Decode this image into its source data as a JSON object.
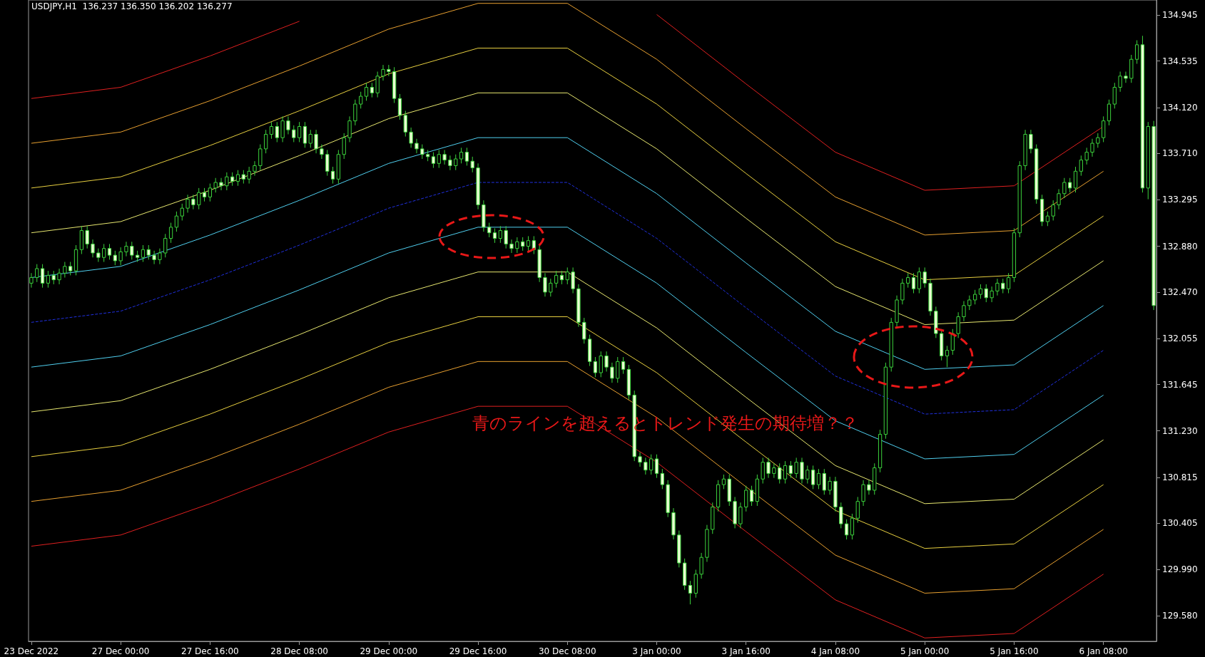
{
  "chart_data": {
    "type": "candlestick",
    "title": "USDJPY,H1  136.237 136.350 136.202 136.277",
    "annotations": [
      "青のラインを超えるとトレンド発生の期待増？？"
    ],
    "color": "#3cd23c",
    "categories": [
      "23 Dec 2022",
      null,
      null,
      null,
      null,
      null,
      null,
      null,
      null,
      null,
      null,
      null,
      null,
      null,
      null,
      null,
      "27 Dec 00:00",
      null,
      null,
      null,
      null,
      null,
      null,
      null,
      null,
      null,
      null,
      null,
      null,
      null,
      null,
      null,
      "27 Dec 16:00",
      null,
      null,
      null,
      null,
      null,
      null,
      null,
      null,
      null,
      null,
      null,
      null,
      null,
      null,
      null,
      "28 Dec 08:00",
      null,
      null,
      null,
      null,
      null,
      null,
      null,
      null,
      null,
      null,
      null,
      null,
      null,
      null,
      null,
      "29 Dec 00:00",
      null,
      null,
      null,
      null,
      null,
      null,
      null,
      null,
      null,
      null,
      null,
      null,
      null,
      null,
      null,
      "29 Dec 16:00",
      null,
      null,
      null,
      null,
      null,
      null,
      null,
      null,
      null,
      null,
      null,
      null,
      null,
      null,
      null,
      "30 Dec 08:00",
      null,
      null,
      null,
      null,
      null,
      null,
      null,
      null,
      null,
      null,
      null,
      null,
      null,
      null,
      null,
      "3 Jan 00:00",
      null,
      null,
      null,
      null,
      null,
      null,
      null,
      null,
      null,
      null,
      null,
      null,
      null,
      null,
      null,
      "3 Jan 16:00",
      null,
      null,
      null,
      null,
      null,
      null,
      null,
      null,
      null,
      null,
      null,
      null,
      null,
      null,
      null,
      "4 Jan 08:00",
      null,
      null,
      null,
      null,
      null,
      null,
      null,
      null,
      null,
      null,
      null,
      null,
      null,
      null,
      null,
      "5 Jan 00:00",
      null,
      null,
      null,
      null,
      null,
      null,
      null,
      null,
      null,
      null,
      null,
      null,
      null,
      null,
      null,
      "5 Jan 16:00",
      null,
      null,
      null,
      null,
      null,
      null,
      null,
      null,
      null,
      null,
      null,
      null,
      null,
      null,
      null,
      "6 Jan 08:00",
      null,
      null,
      null,
      null,
      null,
      null,
      null,
      null,
      null
    ],
    "ylim": [
      129.35,
      135.08
    ],
    "yticks": [
      134.945,
      134.535,
      {
        "value": 134.12,
        "label": "134.120"
      },
      {
        "value": 133.71,
        "label": "133.710"
      },
      133.295,
      {
        "value": 132.88,
        "label": "132.880"
      },
      {
        "value": 132.47,
        "label": "132.470"
      },
      132.055,
      131.645,
      {
        "value": 131.23,
        "label": "131.230"
      },
      130.815,
      130.405,
      {
        "value": 129.99,
        "label": "129.990"
      },
      {
        "value": 129.58,
        "label": "129.580"
      }
    ],
    "ohlc": [
      [
        132.55,
        132.64,
        132.51,
        132.6
      ],
      [
        132.6,
        132.72,
        132.56,
        132.68
      ],
      [
        132.68,
        132.72,
        132.51,
        132.55
      ],
      [
        132.55,
        132.66,
        132.51,
        132.62
      ],
      [
        132.62,
        132.66,
        132.54,
        132.58
      ],
      [
        132.58,
        132.68,
        132.54,
        132.64
      ],
      [
        132.64,
        132.74,
        132.6,
        132.7
      ],
      [
        132.7,
        132.74,
        132.62,
        132.66
      ],
      [
        132.66,
        132.89,
        132.62,
        132.85
      ],
      [
        132.85,
        133.06,
        132.81,
        133.02
      ],
      [
        133.02,
        133.06,
        132.86,
        132.9
      ],
      [
        132.9,
        132.94,
        132.78,
        132.82
      ],
      [
        132.82,
        132.86,
        132.74,
        132.78
      ],
      [
        132.78,
        132.9,
        132.74,
        132.86
      ],
      [
        132.86,
        132.9,
        132.76,
        132.8
      ],
      [
        132.8,
        132.84,
        132.71,
        132.75
      ],
      [
        132.75,
        132.87,
        132.71,
        132.83
      ],
      [
        132.83,
        132.92,
        132.79,
        132.88
      ],
      [
        132.88,
        132.92,
        132.76,
        132.8
      ],
      [
        132.8,
        132.84,
        132.74,
        132.78
      ],
      [
        132.78,
        132.89,
        132.74,
        132.85
      ],
      [
        132.85,
        132.89,
        132.76,
        132.8
      ],
      [
        132.8,
        132.84,
        132.72,
        132.76
      ],
      [
        132.76,
        132.86,
        132.72,
        132.82
      ],
      [
        132.82,
        132.99,
        132.78,
        132.95
      ],
      [
        132.95,
        133.09,
        132.91,
        133.05
      ],
      [
        133.05,
        133.19,
        133.01,
        133.15
      ],
      [
        133.15,
        133.26,
        133.11,
        133.22
      ],
      [
        133.22,
        133.34,
        133.18,
        133.3
      ],
      [
        133.3,
        133.34,
        133.21,
        133.25
      ],
      [
        133.25,
        133.4,
        133.21,
        133.36
      ],
      [
        133.36,
        133.4,
        133.28,
        133.32
      ],
      [
        133.32,
        133.44,
        133.28,
        133.4
      ],
      [
        133.4,
        133.49,
        133.36,
        133.45
      ],
      [
        133.45,
        133.49,
        133.38,
        133.42
      ],
      [
        133.42,
        133.54,
        133.38,
        133.5
      ],
      [
        133.5,
        133.54,
        133.42,
        133.46
      ],
      [
        133.46,
        133.56,
        133.42,
        133.52
      ],
      [
        133.52,
        133.56,
        133.44,
        133.48
      ],
      [
        133.48,
        133.59,
        133.44,
        133.55
      ],
      [
        133.55,
        133.64,
        133.51,
        133.6
      ],
      [
        133.6,
        133.79,
        133.56,
        133.75
      ],
      [
        133.75,
        133.92,
        133.71,
        133.88
      ],
      [
        133.88,
        133.99,
        133.84,
        133.95
      ],
      [
        133.95,
        133.99,
        133.81,
        133.85
      ],
      [
        133.85,
        134.04,
        133.81,
        134.0
      ],
      [
        134.0,
        134.04,
        133.88,
        133.92
      ],
      [
        133.92,
        133.96,
        133.81,
        133.85
      ],
      [
        133.85,
        133.99,
        133.81,
        133.95
      ],
      [
        133.95,
        133.99,
        133.76,
        133.8
      ],
      [
        133.8,
        133.92,
        133.76,
        133.88
      ],
      [
        133.88,
        133.92,
        133.71,
        133.75
      ],
      [
        133.75,
        133.79,
        133.66,
        133.7
      ],
      [
        133.7,
        133.74,
        133.51,
        133.55
      ],
      [
        133.55,
        133.59,
        133.44,
        133.48
      ],
      [
        133.48,
        133.74,
        133.44,
        133.7
      ],
      [
        133.7,
        133.89,
        133.66,
        133.85
      ],
      [
        133.85,
        134.04,
        133.81,
        134.0
      ],
      [
        134.0,
        134.19,
        133.96,
        134.15
      ],
      [
        134.15,
        134.26,
        134.11,
        134.22
      ],
      [
        134.22,
        134.34,
        134.18,
        134.3
      ],
      [
        134.3,
        134.34,
        134.21,
        134.25
      ],
      [
        134.25,
        134.44,
        134.21,
        134.4
      ],
      [
        134.4,
        134.5,
        134.36,
        134.46
      ],
      [
        134.46,
        134.5,
        134.4,
        134.44
      ],
      [
        134.44,
        134.48,
        134.16,
        134.2
      ],
      [
        134.2,
        134.24,
        134.01,
        134.05
      ],
      [
        134.05,
        134.09,
        133.86,
        133.9
      ],
      [
        133.9,
        133.94,
        133.76,
        133.8
      ],
      [
        133.8,
        133.84,
        133.71,
        133.75
      ],
      [
        133.75,
        133.79,
        133.66,
        133.7
      ],
      [
        133.7,
        133.74,
        133.64,
        133.68
      ],
      [
        133.68,
        133.72,
        133.58,
        133.62
      ],
      [
        133.62,
        133.74,
        133.58,
        133.7
      ],
      [
        133.7,
        133.74,
        133.61,
        133.65
      ],
      [
        133.65,
        133.69,
        133.56,
        133.6
      ],
      [
        133.6,
        133.7,
        133.56,
        133.66
      ],
      [
        133.66,
        133.76,
        133.62,
        133.72
      ],
      [
        133.72,
        133.76,
        133.6,
        133.64
      ],
      [
        133.64,
        133.68,
        133.54,
        133.58
      ],
      [
        133.58,
        133.62,
        133.21,
        133.25
      ],
      [
        133.25,
        133.29,
        133.01,
        133.05
      ],
      [
        133.05,
        133.09,
        132.96,
        133.0
      ],
      [
        133.0,
        133.04,
        132.91,
        132.95
      ],
      [
        132.95,
        133.06,
        132.91,
        133.02
      ],
      [
        133.02,
        133.06,
        132.86,
        132.9
      ],
      [
        132.9,
        132.94,
        132.82,
        132.86
      ],
      [
        132.86,
        132.96,
        132.82,
        132.92
      ],
      [
        132.92,
        132.96,
        132.84,
        132.88
      ],
      [
        132.88,
        132.97,
        132.84,
        132.93
      ],
      [
        132.93,
        132.97,
        132.81,
        132.85
      ],
      [
        132.85,
        132.89,
        132.56,
        132.6
      ],
      [
        132.6,
        132.64,
        132.43,
        132.47
      ],
      [
        132.47,
        132.59,
        132.43,
        132.55
      ],
      [
        132.55,
        132.66,
        132.51,
        132.62
      ],
      [
        132.62,
        132.66,
        132.54,
        132.58
      ],
      [
        132.58,
        132.69,
        132.54,
        132.65
      ],
      [
        132.65,
        132.69,
        132.46,
        132.5
      ],
      [
        132.5,
        132.54,
        132.16,
        132.2
      ],
      [
        132.2,
        132.24,
        132.01,
        132.05
      ],
      [
        132.05,
        132.09,
        131.81,
        131.85
      ],
      [
        131.85,
        131.89,
        131.71,
        131.75
      ],
      [
        131.75,
        131.94,
        131.71,
        131.9
      ],
      [
        131.9,
        131.94,
        131.76,
        131.8
      ],
      [
        131.8,
        131.84,
        131.66,
        131.7
      ],
      [
        131.7,
        131.89,
        131.66,
        131.85
      ],
      [
        131.85,
        131.89,
        131.74,
        131.78
      ],
      [
        131.78,
        131.82,
        131.51,
        131.55
      ],
      [
        131.55,
        131.59,
        130.96,
        131.0
      ],
      [
        131.0,
        131.04,
        130.91,
        130.95
      ],
      [
        130.95,
        130.99,
        130.84,
        130.88
      ],
      [
        130.88,
        131.02,
        130.84,
        130.98
      ],
      [
        130.98,
        131.02,
        130.81,
        130.85
      ],
      [
        130.85,
        130.89,
        130.71,
        130.75
      ],
      [
        130.75,
        130.79,
        130.46,
        130.5
      ],
      [
        130.5,
        130.54,
        130.26,
        130.3
      ],
      [
        130.3,
        130.34,
        130.01,
        130.05
      ],
      [
        130.05,
        130.09,
        129.81,
        129.85
      ],
      [
        129.85,
        129.89,
        129.68,
        129.78
      ],
      [
        129.78,
        129.99,
        129.74,
        129.95
      ],
      [
        129.95,
        130.14,
        129.91,
        130.1
      ],
      [
        130.1,
        130.39,
        130.06,
        130.35
      ],
      [
        130.35,
        130.59,
        130.31,
        130.55
      ],
      [
        130.55,
        130.79,
        130.51,
        130.75
      ],
      [
        130.75,
        130.84,
        130.71,
        130.8
      ],
      [
        130.8,
        130.84,
        130.56,
        130.6
      ],
      [
        130.6,
        130.64,
        130.36,
        130.4
      ],
      [
        130.4,
        130.59,
        130.36,
        130.55
      ],
      [
        130.55,
        130.74,
        130.51,
        130.7
      ],
      [
        130.7,
        130.74,
        130.56,
        130.6
      ],
      [
        130.6,
        130.84,
        130.56,
        130.8
      ],
      [
        130.8,
        130.99,
        130.76,
        130.95
      ],
      [
        130.95,
        130.99,
        130.81,
        130.85
      ],
      [
        130.85,
        130.94,
        130.81,
        130.9
      ],
      [
        130.9,
        130.94,
        130.76,
        130.8
      ],
      [
        130.8,
        130.96,
        130.76,
        130.92
      ],
      [
        130.92,
        130.96,
        130.81,
        130.85
      ],
      [
        130.85,
        130.99,
        130.81,
        130.95
      ],
      [
        130.95,
        130.99,
        130.76,
        130.8
      ],
      [
        130.8,
        130.92,
        130.76,
        130.88
      ],
      [
        130.88,
        130.92,
        130.71,
        130.75
      ],
      [
        130.75,
        130.89,
        130.71,
        130.85
      ],
      [
        130.85,
        130.89,
        130.66,
        130.7
      ],
      [
        130.7,
        130.82,
        130.66,
        130.78
      ],
      [
        130.78,
        130.82,
        130.51,
        130.55
      ],
      [
        130.55,
        130.59,
        130.36,
        130.4
      ],
      [
        130.4,
        130.44,
        130.26,
        130.3
      ],
      [
        130.3,
        130.49,
        130.26,
        130.45
      ],
      [
        130.45,
        130.64,
        130.41,
        130.6
      ],
      [
        130.6,
        130.79,
        130.56,
        130.75
      ],
      [
        130.75,
        130.79,
        130.66,
        130.7
      ],
      [
        130.7,
        130.94,
        130.66,
        130.9
      ],
      [
        130.9,
        131.24,
        130.86,
        131.2
      ],
      [
        131.2,
        131.84,
        131.16,
        131.8
      ],
      [
        131.8,
        132.24,
        131.76,
        132.2
      ],
      [
        132.2,
        132.44,
        132.16,
        132.4
      ],
      [
        132.4,
        132.59,
        132.36,
        132.55
      ],
      [
        132.55,
        132.64,
        132.51,
        132.6
      ],
      [
        132.6,
        132.64,
        132.46,
        132.5
      ],
      [
        132.5,
        132.69,
        132.46,
        132.65
      ],
      [
        132.65,
        132.69,
        132.51,
        132.55
      ],
      [
        132.55,
        132.59,
        132.26,
        132.3
      ],
      [
        132.3,
        132.34,
        132.06,
        132.1
      ],
      [
        132.1,
        132.14,
        131.86,
        131.9
      ],
      [
        131.9,
        131.99,
        131.8,
        131.95
      ],
      [
        131.95,
        132.14,
        131.91,
        132.1
      ],
      [
        132.1,
        132.29,
        132.06,
        132.25
      ],
      [
        132.25,
        132.39,
        132.21,
        132.35
      ],
      [
        132.35,
        132.44,
        132.31,
        132.4
      ],
      [
        132.4,
        132.49,
        132.36,
        132.45
      ],
      [
        132.45,
        132.54,
        132.41,
        132.5
      ],
      [
        132.5,
        132.54,
        132.38,
        132.42
      ],
      [
        132.42,
        132.52,
        132.38,
        132.48
      ],
      [
        132.48,
        132.59,
        132.44,
        132.55
      ],
      [
        132.55,
        132.59,
        132.46,
        132.5
      ],
      [
        132.5,
        132.64,
        132.46,
        132.6
      ],
      [
        132.6,
        133.04,
        132.56,
        133.0
      ],
      [
        133.0,
        133.64,
        132.96,
        133.6
      ],
      [
        133.6,
        133.92,
        133.56,
        133.88
      ],
      [
        133.88,
        133.92,
        133.71,
        133.75
      ],
      [
        133.75,
        133.79,
        133.26,
        133.3
      ],
      [
        133.3,
        133.34,
        133.06,
        133.1
      ],
      [
        133.1,
        133.19,
        133.06,
        133.15
      ],
      [
        133.15,
        133.29,
        133.11,
        133.25
      ],
      [
        133.25,
        133.39,
        133.21,
        133.35
      ],
      [
        133.35,
        133.49,
        133.31,
        133.45
      ],
      [
        133.45,
        133.49,
        133.36,
        133.4
      ],
      [
        133.4,
        133.59,
        133.36,
        133.55
      ],
      [
        133.55,
        133.69,
        133.51,
        133.65
      ],
      [
        133.65,
        133.76,
        133.61,
        133.72
      ],
      [
        133.72,
        133.84,
        133.68,
        133.8
      ],
      [
        133.8,
        133.89,
        133.76,
        133.85
      ],
      [
        133.85,
        134.04,
        133.81,
        134.0
      ],
      [
        134.0,
        134.19,
        133.96,
        134.15
      ],
      [
        134.15,
        134.34,
        134.11,
        134.3
      ],
      [
        134.3,
        134.44,
        134.26,
        134.4
      ],
      [
        134.4,
        134.44,
        134.34,
        134.38
      ],
      [
        134.38,
        134.59,
        134.34,
        134.55
      ],
      [
        134.55,
        134.72,
        134.51,
        134.68
      ],
      [
        134.68,
        134.76,
        133.36,
        133.4
      ],
      [
        133.4,
        133.99,
        133.3,
        133.95
      ],
      [
        133.95,
        134.0,
        132.31,
        132.35
      ]
    ],
    "series": [
      {
        "type": "line",
        "color": "#e02020",
        "x": [
          "23 Dec 2022",
          "27 Dec 00:00",
          "27 Dec 16:00",
          "28 Dec 08:00",
          "29 Dec 00:00",
          "29 Dec 16:00",
          "30 Dec 08:00",
          "3 Jan 00:00",
          "3 Jan 16:00",
          "4 Jan 08:00",
          "5 Jan 00:00",
          "5 Jan 16:00",
          "6 Jan 08:00"
        ],
        "values": [
          134.2,
          134.3,
          134.58,
          134.89,
          null,
          null,
          null,
          134.95,
          134.33,
          133.72,
          133.38,
          133.42,
          133.95
        ]
      },
      {
        "type": "line",
        "color": "#e8a030",
        "x": [
          "23 Dec 2022",
          "27 Dec 00:00",
          "27 Dec 16:00",
          "28 Dec 08:00",
          "29 Dec 00:00",
          "29 Dec 16:00",
          "30 Dec 08:00",
          "3 Jan 00:00",
          "3 Jan 16:00",
          "4 Jan 08:00",
          "5 Jan 00:00",
          "5 Jan 16:00",
          "6 Jan 08:00"
        ],
        "values": [
          133.8,
          133.9,
          134.18,
          134.49,
          134.82,
          135.05,
          135.05,
          134.55,
          133.93,
          133.32,
          132.98,
          133.02,
          133.55
        ]
      },
      {
        "type": "line",
        "color": "#e8d040",
        "x": [
          "23 Dec 2022",
          "27 Dec 00:00",
          "27 Dec 16:00",
          "28 Dec 08:00",
          "29 Dec 00:00",
          "29 Dec 16:00",
          "30 Dec 08:00",
          "3 Jan 00:00",
          "3 Jan 16:00",
          "4 Jan 08:00",
          "5 Jan 00:00",
          "5 Jan 16:00",
          "6 Jan 08:00"
        ],
        "values": [
          133.4,
          133.5,
          133.78,
          134.09,
          134.42,
          134.65,
          134.65,
          134.15,
          133.53,
          132.92,
          132.58,
          132.62,
          133.15
        ]
      },
      {
        "type": "line",
        "color": "#e8e870",
        "x": [
          "23 Dec 2022",
          "27 Dec 00:00",
          "27 Dec 16:00",
          "28 Dec 08:00",
          "29 Dec 00:00",
          "29 Dec 16:00",
          "30 Dec 08:00",
          "3 Jan 00:00",
          "3 Jan 16:00",
          "4 Jan 08:00",
          "5 Jan 00:00",
          "5 Jan 16:00",
          "6 Jan 08:00"
        ],
        "values": [
          133.0,
          133.1,
          133.38,
          133.69,
          134.02,
          134.25,
          134.25,
          133.75,
          133.13,
          132.52,
          132.18,
          132.22,
          132.75
        ]
      },
      {
        "type": "line",
        "color": "#50d0f0",
        "x": [
          "23 Dec 2022",
          "27 Dec 00:00",
          "27 Dec 16:00",
          "28 Dec 08:00",
          "29 Dec 00:00",
          "29 Dec 16:00",
          "30 Dec 08:00",
          "3 Jan 00:00",
          "3 Jan 16:00",
          "4 Jan 08:00",
          "5 Jan 00:00",
          "5 Jan 16:00",
          "6 Jan 08:00"
        ],
        "values": [
          132.6,
          132.7,
          132.98,
          133.29,
          133.62,
          133.85,
          133.85,
          133.35,
          132.73,
          132.12,
          131.78,
          131.82,
          132.35
        ]
      },
      {
        "type": "line",
        "color": "#2030e0",
        "line_style": "dashed",
        "x": [
          "23 Dec 2022",
          "27 Dec 00:00",
          "27 Dec 16:00",
          "28 Dec 08:00",
          "29 Dec 00:00",
          "29 Dec 16:00",
          "30 Dec 08:00",
          "3 Jan 00:00",
          "3 Jan 16:00",
          "4 Jan 08:00",
          "5 Jan 00:00",
          "5 Jan 16:00",
          "6 Jan 08:00"
        ],
        "values": [
          132.2,
          132.3,
          132.58,
          132.89,
          133.22,
          133.45,
          133.45,
          132.95,
          132.33,
          131.72,
          131.38,
          131.42,
          131.95
        ]
      },
      {
        "type": "line",
        "color": "#50d0f0",
        "x": [
          "23 Dec 2022",
          "27 Dec 00:00",
          "27 Dec 16:00",
          "28 Dec 08:00",
          "29 Dec 00:00",
          "29 Dec 16:00",
          "30 Dec 08:00",
          "3 Jan 00:00",
          "3 Jan 16:00",
          "4 Jan 08:00",
          "5 Jan 00:00",
          "5 Jan 16:00",
          "6 Jan 08:00"
        ],
        "values": [
          131.8,
          131.9,
          132.18,
          132.49,
          132.82,
          133.05,
          133.05,
          132.55,
          131.93,
          131.32,
          130.98,
          131.02,
          131.55
        ]
      },
      {
        "type": "line",
        "color": "#e8e870",
        "x": [
          "23 Dec 2022",
          "27 Dec 00:00",
          "27 Dec 16:00",
          "28 Dec 08:00",
          "29 Dec 00:00",
          "29 Dec 16:00",
          "30 Dec 08:00",
          "3 Jan 00:00",
          "3 Jan 16:00",
          "4 Jan 08:00",
          "5 Jan 00:00",
          "5 Jan 16:00",
          "6 Jan 08:00"
        ],
        "values": [
          131.4,
          131.5,
          131.78,
          132.09,
          132.42,
          132.65,
          132.65,
          132.15,
          131.53,
          130.92,
          130.58,
          130.62,
          131.15
        ]
      },
      {
        "type": "line",
        "color": "#e8d040",
        "x": [
          "23 Dec 2022",
          "27 Dec 00:00",
          "27 Dec 16:00",
          "28 Dec 08:00",
          "29 Dec 00:00",
          "29 Dec 16:00",
          "30 Dec 08:00",
          "3 Jan 00:00",
          "3 Jan 16:00",
          "4 Jan 08:00",
          "5 Jan 00:00",
          "5 Jan 16:00",
          "6 Jan 08:00"
        ],
        "values": [
          131.0,
          131.1,
          131.38,
          131.69,
          132.02,
          132.25,
          132.25,
          131.75,
          131.13,
          130.52,
          130.18,
          130.22,
          130.75
        ]
      },
      {
        "type": "line",
        "color": "#e8a030",
        "x": [
          "23 Dec 2022",
          "27 Dec 00:00",
          "27 Dec 16:00",
          "28 Dec 08:00",
          "29 Dec 00:00",
          "29 Dec 16:00",
          "30 Dec 08:00",
          "3 Jan 00:00",
          "3 Jan 16:00",
          "4 Jan 08:00",
          "5 Jan 00:00",
          "5 Jan 16:00",
          "6 Jan 08:00"
        ],
        "values": [
          130.6,
          130.7,
          130.98,
          131.29,
          131.62,
          131.85,
          131.85,
          131.35,
          130.73,
          130.12,
          129.78,
          129.82,
          130.35
        ]
      },
      {
        "type": "line",
        "color": "#e02020",
        "x": [
          "23 Dec 2022",
          "27 Dec 00:00",
          "27 Dec 16:00",
          "28 Dec 08:00",
          "29 Dec 00:00",
          "29 Dec 16:00",
          "30 Dec 08:00",
          "3 Jan 00:00",
          "3 Jan 16:00",
          "4 Jan 08:00",
          "5 Jan 00:00",
          "5 Jan 16:00",
          "6 Jan 08:00"
        ],
        "values": [
          130.2,
          130.3,
          130.58,
          130.89,
          131.22,
          131.45,
          131.45,
          130.95,
          130.33,
          129.72,
          129.38,
          129.42,
          129.95
        ]
      }
    ]
  }
}
